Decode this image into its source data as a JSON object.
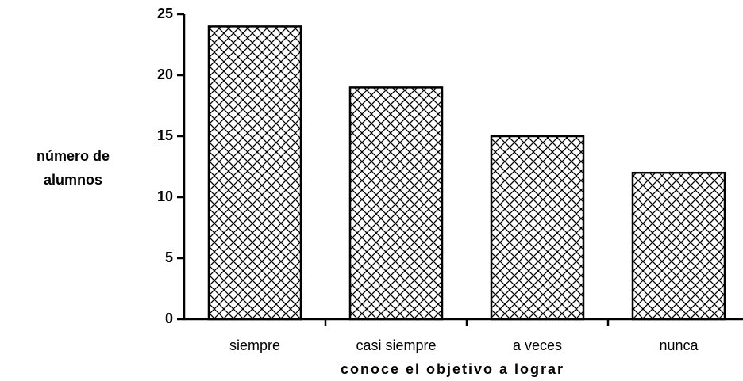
{
  "chart_data": {
    "type": "bar",
    "ylabel": [
      "número de",
      "alumnos"
    ],
    "xlabel": "conoce el objetivo a lograr",
    "categories": [
      "siempre",
      "casi siempre",
      "a veces",
      "nunca"
    ],
    "values": [
      24,
      19,
      15,
      12
    ],
    "color": "#000000",
    "ylim": [
      0,
      25
    ],
    "yticks": [
      0,
      5,
      10,
      15,
      20,
      25
    ]
  }
}
